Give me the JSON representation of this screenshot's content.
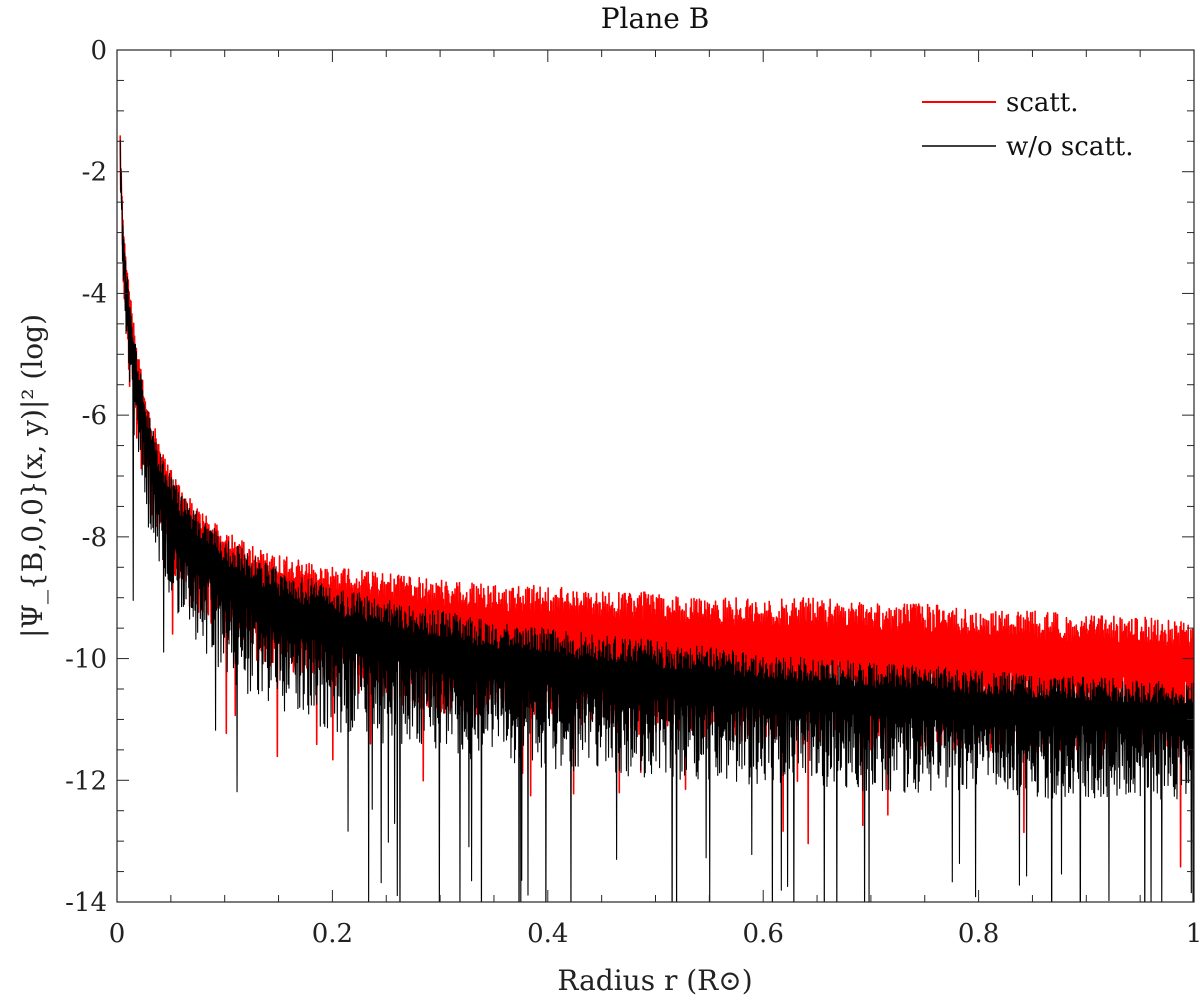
{
  "chart_data": {
    "type": "line",
    "title": "Plane B",
    "xlabel": "Radius r (R⊙)",
    "ylabel": "|Ψ_{B,0,0}(x, y)|² (log)",
    "xlim": [
      0,
      1
    ],
    "ylim": [
      -14,
      0
    ],
    "x_ticks": [
      "0",
      "0.2",
      "0.4",
      "0.6",
      "0.8",
      "1"
    ],
    "y_ticks": [
      "0",
      "-2",
      "-4",
      "-6",
      "-8",
      "-10",
      "-12",
      "-14"
    ],
    "grid": false,
    "legend_position": "top-right",
    "series": [
      {
        "name": "scatt.",
        "color": "#ff0000",
        "x": [
          0.003,
          0.005,
          0.008,
          0.012,
          0.016,
          0.02,
          0.03,
          0.04,
          0.05,
          0.06,
          0.08,
          0.1,
          0.12,
          0.15,
          0.2,
          0.25,
          0.3,
          0.35,
          0.4,
          0.45,
          0.5,
          0.55,
          0.6,
          0.65,
          0.7,
          0.75,
          0.8,
          0.85,
          0.9,
          0.95,
          1.0
        ],
        "y_upper": [
          -1.4,
          -2.5,
          -3.3,
          -4.0,
          -4.5,
          -5.0,
          -5.9,
          -6.5,
          -6.9,
          -7.2,
          -7.6,
          -7.9,
          -8.1,
          -8.3,
          -8.5,
          -8.6,
          -8.7,
          -8.8,
          -8.8,
          -8.9,
          -8.9,
          -9.0,
          -9.0,
          -9.0,
          -9.1,
          -9.1,
          -9.2,
          -9.2,
          -9.3,
          -9.3,
          -9.4
        ],
        "y_lower": [
          -2.0,
          -3.5,
          -4.6,
          -5.6,
          -6.3,
          -6.8,
          -7.6,
          -8.1,
          -8.6,
          -9.0,
          -9.4,
          -9.7,
          -10.0,
          -10.2,
          -10.5,
          -10.7,
          -10.9,
          -11.0,
          -11.1,
          -11.2,
          -11.3,
          -11.3,
          -11.4,
          -11.4,
          -11.5,
          -11.5,
          -11.5,
          -11.6,
          -11.6,
          -11.6,
          -11.7
        ]
      },
      {
        "name": "w/o scatt.",
        "color": "#000000",
        "x": [
          0.003,
          0.005,
          0.008,
          0.012,
          0.016,
          0.02,
          0.03,
          0.04,
          0.05,
          0.06,
          0.08,
          0.1,
          0.12,
          0.15,
          0.2,
          0.25,
          0.3,
          0.35,
          0.4,
          0.45,
          0.5,
          0.55,
          0.6,
          0.65,
          0.7,
          0.75,
          0.8,
          0.85,
          0.9,
          0.95,
          1.0
        ],
        "y_upper": [
          -1.4,
          -2.6,
          -3.4,
          -4.1,
          -4.6,
          -5.1,
          -6.0,
          -6.6,
          -7.0,
          -7.3,
          -7.7,
          -8.0,
          -8.2,
          -8.5,
          -8.8,
          -9.0,
          -9.2,
          -9.4,
          -9.5,
          -9.6,
          -9.7,
          -9.8,
          -9.9,
          -10.0,
          -10.05,
          -10.1,
          -10.2,
          -10.25,
          -10.3,
          -10.35,
          -10.4
        ],
        "y_lower": [
          -2.1,
          -3.6,
          -4.7,
          -5.8,
          -6.6,
          -7.1,
          -8.0,
          -8.6,
          -9.0,
          -9.4,
          -9.9,
          -10.3,
          -10.6,
          -10.9,
          -11.2,
          -11.4,
          -11.6,
          -11.7,
          -11.8,
          -11.9,
          -12.0,
          -12.0,
          -12.1,
          -12.1,
          -12.2,
          -12.2,
          -12.2,
          -12.3,
          -12.3,
          -12.3,
          -12.4
        ]
      }
    ]
  }
}
